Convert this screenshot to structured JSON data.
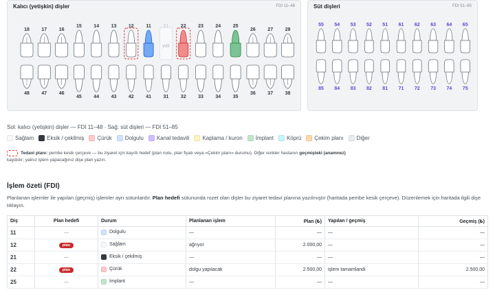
{
  "permanent": {
    "title": "Kalıcı (yetişkin) dişler",
    "range": "FDI 11–48",
    "upper": [
      "18",
      "17",
      "16",
      "15",
      "14",
      "13",
      "12",
      "11",
      "21",
      "22",
      "23",
      "24",
      "25",
      "26",
      "27",
      "28"
    ],
    "lower": [
      "48",
      "47",
      "46",
      "45",
      "44",
      "43",
      "42",
      "41",
      "31",
      "32",
      "33",
      "34",
      "35",
      "36",
      "37",
      "38"
    ],
    "missing_label": "yok"
  },
  "primary": {
    "title": "Süt dişleri",
    "range": "FDI 51–85",
    "upper": [
      "55",
      "54",
      "53",
      "52",
      "51",
      "61",
      "62",
      "63",
      "64",
      "65"
    ],
    "lower": [
      "85",
      "84",
      "83",
      "82",
      "81",
      "71",
      "72",
      "73",
      "74",
      "75"
    ]
  },
  "caption": "Sol: kalıcı (yetişkin) dişler — FDI 11–48 · Sağ: süt dişleri — FDI 51–85",
  "legend": [
    {
      "label": "Sağlam",
      "color": "#f8f9fa"
    },
    {
      "label": "Eksik / çekilmiş",
      "color": "#343a40"
    },
    {
      "label": "Çürük",
      "color": "#ffc9c9"
    },
    {
      "label": "Dolgulu",
      "color": "#cfe2ff"
    },
    {
      "label": "Kanal tedavili",
      "color": "#d0bfff"
    },
    {
      "label": "Kaplama / kuron",
      "color": "#fff3bf"
    },
    {
      "label": "İmplant",
      "color": "#c3e6cb"
    },
    {
      "label": "Köprü",
      "color": "#c5f6fa"
    },
    {
      "label": "Çekim planı",
      "color": "#ffd8a8"
    },
    {
      "label": "Diğer",
      "color": "#e9ecef"
    }
  ],
  "note": {
    "lead": "Tedavi planı:",
    "text": "pembe kesik çerçeve — bu ziyaret için kayıtlı hedef (plan notu, plan fiyatı veya «Çekim planı» durumu). Diğer renkler hastanın",
    "strong": "geçmişteki (anamnez)",
    "line2": "kaydıdır; yalnız işlem yapacağınız dişe plan yazın."
  },
  "summary": {
    "title": "İşlem özeti (FDI)",
    "desc_a": "Planlanan işlemler ile yapılan (geçmiş) işlemler ayrı sütunlardır.",
    "desc_b": "Plan hedefi",
    "desc_c": "sütununda rozet olan dişler bu ziyaret tedavi planına yazılmıştır (haritada pembe kesik çerçeve). Düzenlemek için haritada ilgili dişe tıklayın."
  },
  "table": {
    "headers": [
      "Diş",
      "Plan hedefi",
      "Durum",
      "Planlanan işlem",
      "Plan (₺)",
      "Yapılan / geçmiş",
      "Geçmiş (₺)"
    ],
    "rows": [
      {
        "tooth": "11",
        "target": "—",
        "status": "Dolgulu",
        "status_color": "#cfe2ff",
        "planned": "—",
        "plan_price": "—",
        "done": "—",
        "past_price": "—"
      },
      {
        "tooth": "12",
        "target": "plan",
        "status": "Sağlam",
        "status_color": "#f8f9fa",
        "planned": "ağrıyor",
        "plan_price": "2.000,00",
        "done": "—",
        "past_price": "—"
      },
      {
        "tooth": "21",
        "target": "—",
        "status": "Eksik / çekilmiş",
        "status_color": "#343a40",
        "planned": "—",
        "plan_price": "—",
        "done": "—",
        "past_price": "—"
      },
      {
        "tooth": "22",
        "target": "plan",
        "status": "Çürük",
        "status_color": "#ffc9c9",
        "planned": "dolgu yapılacak",
        "plan_price": "2.500,00",
        "done": "işlem tamamlandı",
        "past_price": "2.500,00"
      },
      {
        "tooth": "25",
        "target": "—",
        "status": "İmplant",
        "status_color": "#c3e6cb",
        "planned": "—",
        "plan_price": "—",
        "done": "—",
        "past_price": "—"
      }
    ]
  }
}
